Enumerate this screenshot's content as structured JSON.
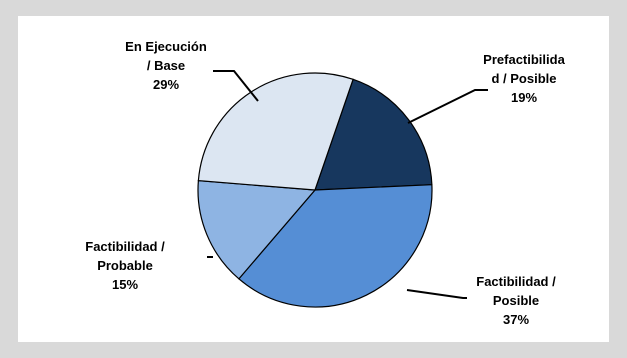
{
  "chart_data": {
    "type": "pie",
    "slices": [
      {
        "label_lines": [
          "Prefactibilida",
          "d / Posible",
          "19%"
        ],
        "name": "Prefactibilidad / Posible",
        "value": 19,
        "color": "#17375e"
      },
      {
        "label_lines": [
          "Factibilidad /",
          "Posible",
          "37%"
        ],
        "name": "Factibilidad / Posible",
        "value": 37,
        "color": "#558ed5"
      },
      {
        "label_lines": [
          "Factibilidad /",
          "Probable",
          "15%"
        ],
        "name": "Factibilidad / Probable",
        "value": 15,
        "color": "#8eb4e3"
      },
      {
        "label_lines": [
          "En Ejecución",
          "/ Base",
          "29%"
        ],
        "name": "En Ejecución / Base",
        "value": 29,
        "color": "#dce6f2"
      }
    ],
    "title": "",
    "legend": "none",
    "border_color": "#000000"
  }
}
